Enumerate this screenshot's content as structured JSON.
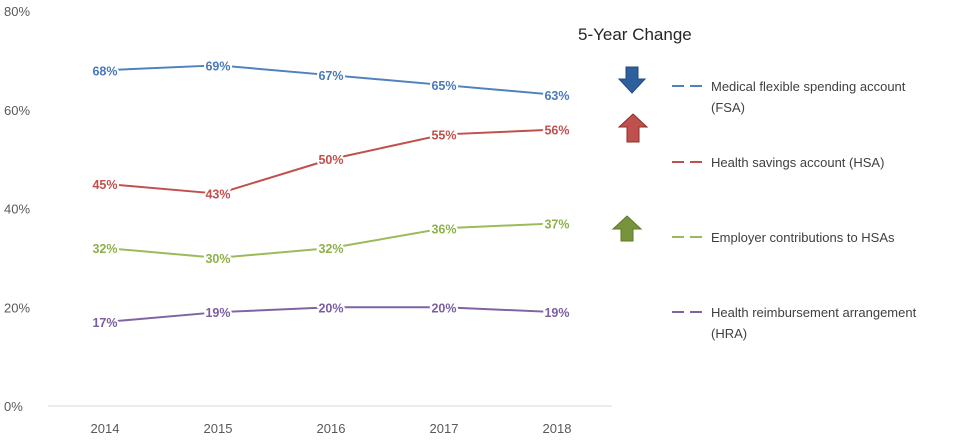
{
  "chart_data": {
    "type": "line",
    "categories": [
      "2014",
      "2015",
      "2016",
      "2017",
      "2018"
    ],
    "y_ticks": [
      "0%",
      "20%",
      "40%",
      "60%",
      "80%"
    ],
    "ylim": [
      0,
      80
    ],
    "unit": "%",
    "grid": false,
    "legend_position": "right",
    "side_title": "5-Year Change",
    "series": [
      {
        "name": "Medical flexible spending account (FSA)",
        "legend_lines": [
          "Medical flexible spending account",
          "(FSA)"
        ],
        "values": [
          68,
          69,
          67,
          65,
          63
        ],
        "labels": [
          "68%",
          "69%",
          "67%",
          "65%",
          "63%"
        ],
        "color": "#4f81bd",
        "label_color": "#4a7ab8",
        "change": "down",
        "change_color": "#2e5f9e"
      },
      {
        "name": "Health savings account (HSA)",
        "legend_lines": [
          "Health savings account (HSA)"
        ],
        "values": [
          45,
          43,
          50,
          55,
          56
        ],
        "labels": [
          "45%",
          "43%",
          "50%",
          "55%",
          "56%"
        ],
        "color": "#c0504d",
        "label_color": "#c0504d",
        "change": "up",
        "change_color": "#c0504d"
      },
      {
        "name": "Employer contributions to HSAs",
        "legend_lines": [
          "Employer contributions to HSAs"
        ],
        "values": [
          32,
          30,
          32,
          36,
          37
        ],
        "labels": [
          "32%",
          "30%",
          "32%",
          "36%",
          "37%"
        ],
        "color": "#9bbb59",
        "label_color": "#8eb04a",
        "change": "up",
        "change_color": "#77933c"
      },
      {
        "name": "Health reimbursement arrangement (HRA)",
        "legend_lines": [
          "Health reimbursement arrangement",
          "(HRA)"
        ],
        "values": [
          17,
          19,
          20,
          20,
          19
        ],
        "labels": [
          "17%",
          "19%",
          "20%",
          "20%",
          "19%"
        ],
        "color": "#8064a2",
        "label_color": "#7a5ea0",
        "change": "none",
        "change_color": ""
      }
    ]
  }
}
